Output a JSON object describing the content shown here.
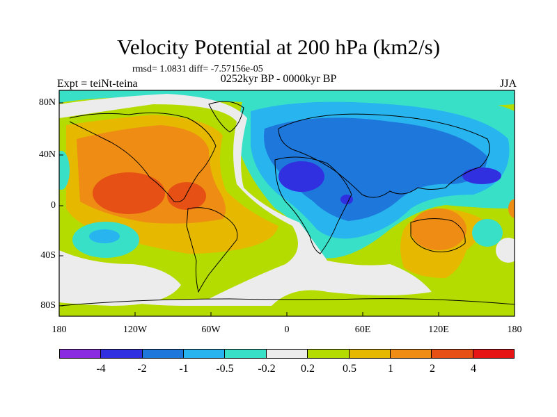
{
  "title": "Velocity Potential at 200 hPa (km2/s)",
  "stats": "rmsd= 1.0831 diff= -7.57156e-05",
  "period": "0252kyr BP - 0000kyr BP",
  "experiment": "Expt = teiNt-teina",
  "season": "JJA",
  "axes": {
    "y_ticks": [
      "80N",
      "40N",
      "0",
      "40S",
      "80S"
    ],
    "x_ticks": [
      "180",
      "120W",
      "60W",
      "0",
      "60E",
      "120E",
      "180"
    ]
  },
  "colorbar": {
    "colors": [
      "#8a2be2",
      "#3030e0",
      "#1e78dc",
      "#28b4ee",
      "#38e0c8",
      "#ececec",
      "#b4dc00",
      "#e6b800",
      "#ee8c14",
      "#e65014",
      "#e61414"
    ],
    "labels": [
      "-4",
      "-2",
      "-1",
      "-0.5",
      "-0.2",
      "0.2",
      "0.5",
      "1",
      "2",
      "4"
    ]
  },
  "map_fields": {
    "background": "#b4dc00",
    "regions": [
      {
        "name": "pacific-north-america-positive",
        "level": "1",
        "color": "#ee8c14"
      },
      {
        "name": "tropical-pacific-max",
        "level": "2",
        "color": "#e65014"
      },
      {
        "name": "eurasia-negative",
        "level": "-0.5",
        "color": "#28b4ee"
      },
      {
        "name": "africa-negative-core",
        "level": "-2",
        "color": "#3030e0"
      },
      {
        "name": "australia-positive",
        "level": "1",
        "color": "#ee8c14"
      },
      {
        "name": "south-pacific-negative",
        "level": "-0.5",
        "color": "#28b4ee"
      },
      {
        "name": "southern-ocean-neutral",
        "level": "0.2",
        "color": "#ececec"
      }
    ]
  }
}
